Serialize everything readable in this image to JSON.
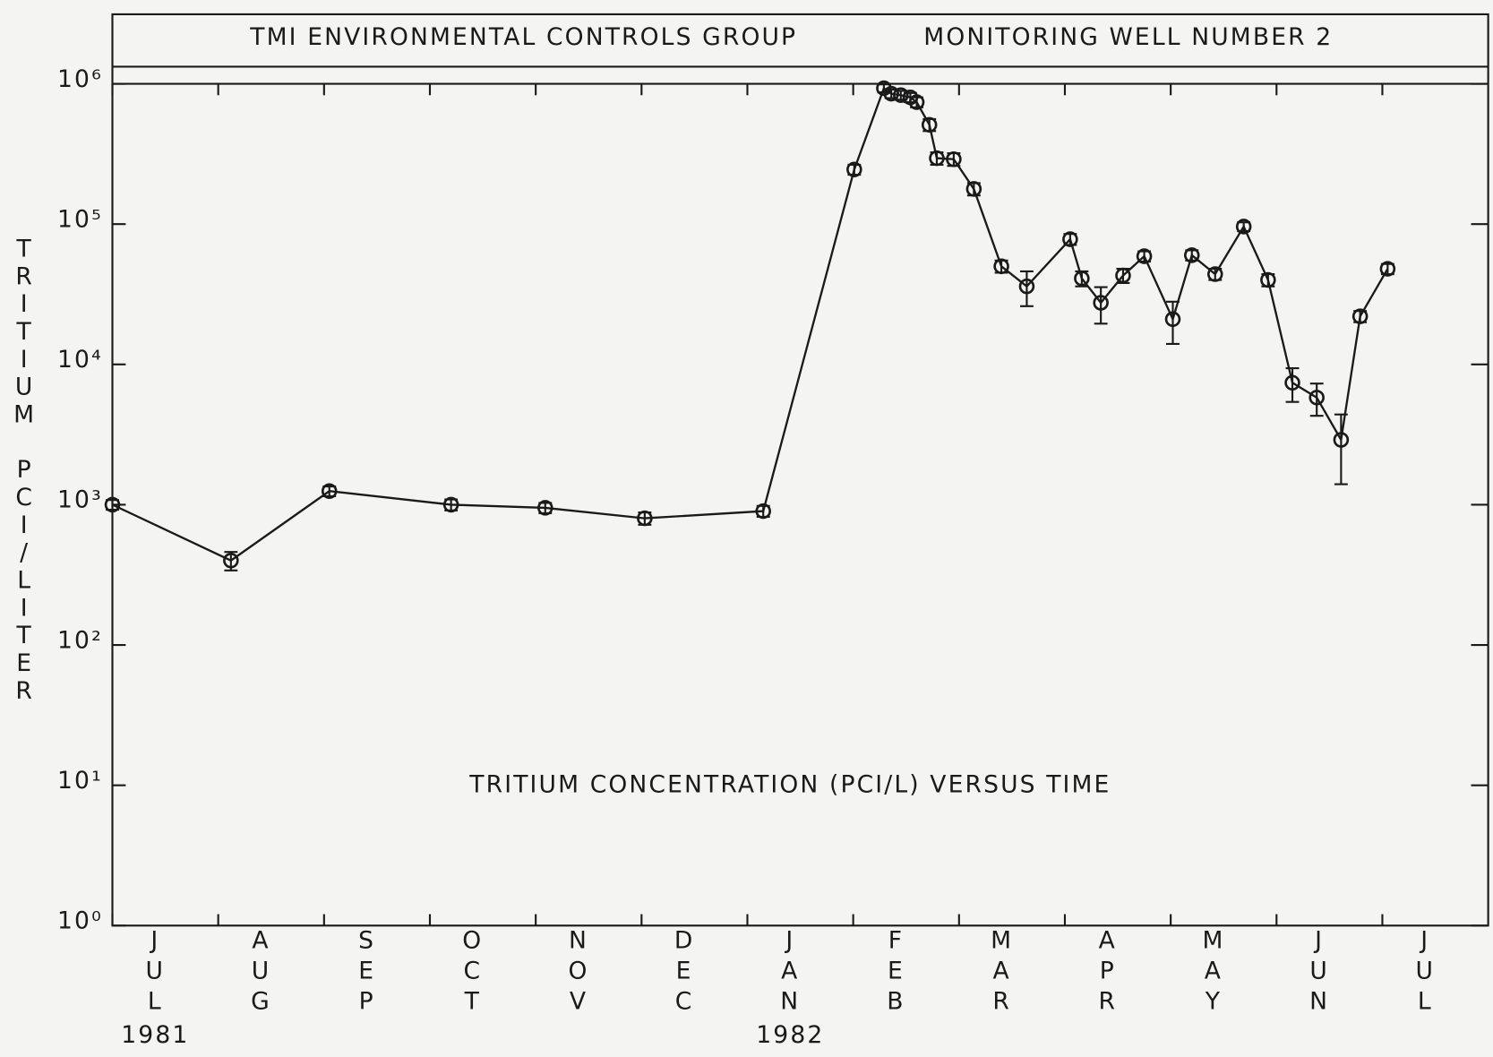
{
  "chart_data": {
    "type": "line",
    "title": "TMI ENVIRONMENTAL CONTROLS GROUP",
    "subtitle": "MONITORING WELL NUMBER 2",
    "y_label": "TRITIUM PCI/LITER",
    "annotation": "TRITIUM CONCENTRATION (PCI/L) VERSUS TIME",
    "year_labels": [
      {
        "x": 0,
        "label": "1981"
      },
      {
        "x": 6,
        "label": "1982"
      }
    ],
    "log_y": true,
    "xlim": [
      0,
      13
    ],
    "xticks": [
      {
        "value": 0,
        "label": "JUL"
      },
      {
        "value": 1,
        "label": "AUG"
      },
      {
        "value": 2,
        "label": "SEP"
      },
      {
        "value": 3,
        "label": "OCT"
      },
      {
        "value": 4,
        "label": "NOV"
      },
      {
        "value": 5,
        "label": "DEC"
      },
      {
        "value": 6,
        "label": "JAN"
      },
      {
        "value": 7,
        "label": "FEB"
      },
      {
        "value": 8,
        "label": "MAR"
      },
      {
        "value": 9,
        "label": "APR"
      },
      {
        "value": 10,
        "label": "MAY"
      },
      {
        "value": 11,
        "label": "JUN"
      },
      {
        "value": 12,
        "label": "JUL"
      }
    ],
    "ylim": [
      1,
      1000000
    ],
    "yticks": [
      {
        "value": 1,
        "label": "10⁰"
      },
      {
        "value": 10,
        "label": "10¹"
      },
      {
        "value": 100,
        "label": "10²"
      },
      {
        "value": 1000,
        "label": "10³"
      },
      {
        "value": 10000,
        "label": "10⁴"
      },
      {
        "value": 100000,
        "label": "10⁵"
      },
      {
        "value": 1000000,
        "label": "10⁶"
      }
    ],
    "series": [
      {
        "name": "Tritium",
        "color": "#1a1a1a",
        "x": [
          0,
          1.12,
          2.05,
          3.2,
          4.09,
          5.03,
          6.15,
          7.01,
          7.29,
          7.36,
          7.45,
          7.54,
          7.6,
          7.72,
          7.79,
          7.95,
          8.14,
          8.4,
          8.64,
          9.05,
          9.16,
          9.34,
          9.55,
          9.75,
          10.02,
          10.2,
          10.42,
          10.69,
          10.92,
          11.15,
          11.38,
          11.61,
          11.79,
          12.05
        ],
        "values": [
          1000,
          400,
          1250,
          1000,
          950,
          800,
          900,
          245000,
          930000,
          850000,
          830000,
          800000,
          740000,
          510000,
          295000,
          290000,
          178000,
          50000,
          36000,
          78000,
          41000,
          27500,
          43000,
          59000,
          21000,
          60000,
          44000,
          96000,
          40000,
          7400,
          5800,
          2900,
          22000,
          48000
        ],
        "errors": [
          80,
          60,
          100,
          90,
          80,
          80,
          80,
          20000,
          60000,
          60000,
          60000,
          60000,
          60000,
          50000,
          30000,
          30000,
          18000,
          5000,
          10000,
          7000,
          5000,
          8000,
          5000,
          5000,
          7000,
          5000,
          4000,
          7000,
          4000,
          2000,
          1500,
          1500,
          2000,
          4000
        ]
      }
    ]
  }
}
